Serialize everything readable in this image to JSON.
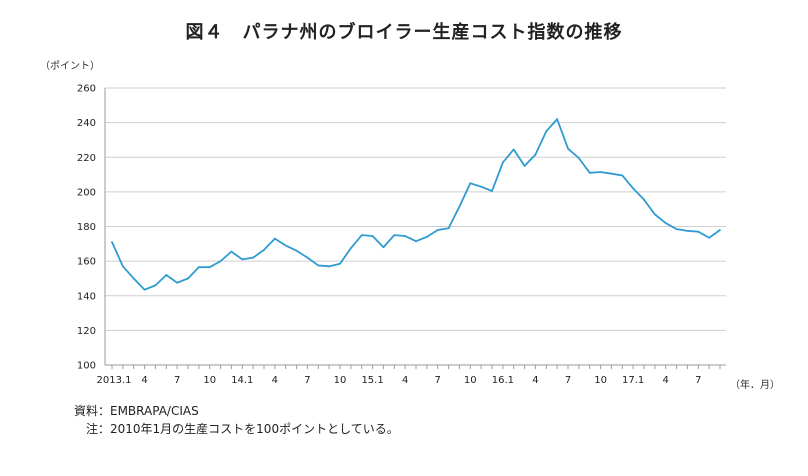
{
  "chart_data": {
    "type": "line",
    "title": "図４　パラナ州のブロイラー生産コスト指数の推移",
    "ylabel": "（ポイント）",
    "xlabel": "（年．月）",
    "ylim": [
      100,
      260
    ],
    "yticks": [
      100,
      120,
      140,
      160,
      180,
      200,
      220,
      240,
      260
    ],
    "grid": true,
    "x_tick_labels": [
      {
        "index": 0,
        "label": "2013.1"
      },
      {
        "index": 3,
        "label": "4"
      },
      {
        "index": 6,
        "label": "7"
      },
      {
        "index": 9,
        "label": "10"
      },
      {
        "index": 12,
        "label": "14.1"
      },
      {
        "index": 15,
        "label": "4"
      },
      {
        "index": 18,
        "label": "7"
      },
      {
        "index": 21,
        "label": "10"
      },
      {
        "index": 24,
        "label": "15.1"
      },
      {
        "index": 27,
        "label": "4"
      },
      {
        "index": 30,
        "label": "7"
      },
      {
        "index": 33,
        "label": "10"
      },
      {
        "index": 36,
        "label": "16.1"
      },
      {
        "index": 39,
        "label": "4"
      },
      {
        "index": 42,
        "label": "7"
      },
      {
        "index": 45,
        "label": "10"
      },
      {
        "index": 48,
        "label": "17.1"
      },
      {
        "index": 51,
        "label": "4"
      },
      {
        "index": 54,
        "label": "7"
      }
    ],
    "series": [
      {
        "name": "パラナ州のブロイラー生産コスト指数",
        "color": "#2e9bd1",
        "values": [
          171,
          157,
          150,
          143.5,
          146,
          152,
          147.5,
          150,
          156.5,
          156.5,
          160,
          165.5,
          161,
          162,
          166.5,
          173,
          169,
          166,
          162,
          157.5,
          157,
          158.5,
          167.5,
          175,
          174.5,
          168,
          175,
          174.5,
          171.5,
          174,
          178,
          179,
          191.5,
          205,
          203,
          200.5,
          217,
          224.5,
          215,
          221.5,
          235,
          242,
          225,
          219.5,
          211,
          211.5,
          210.5,
          209.5,
          202,
          195.5,
          187,
          182,
          178.5,
          177.5,
          177,
          173.5,
          178
        ]
      }
    ]
  },
  "notes": [
    {
      "key": "資料：",
      "text": "EMBRAPA/CIAS"
    },
    {
      "key": "注：",
      "text": "2010年1月の生産コストを100ポイントとしている。"
    }
  ]
}
